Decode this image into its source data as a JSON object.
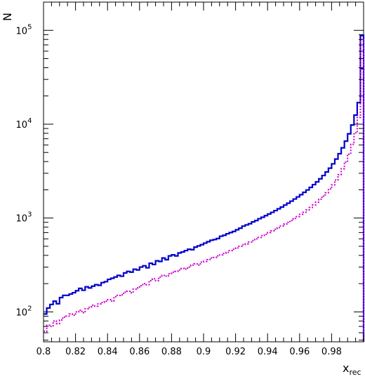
{
  "chart_data": {
    "type": "line",
    "ylabel": "N",
    "xlabel_main": "x",
    "xlabel_sub": "rec",
    "y_scale": "log",
    "xlim": [
      0.8,
      1.0
    ],
    "ylim": [
      48,
      200000
    ],
    "grid": false,
    "legend": "none",
    "x_ticks": [
      0.8,
      0.82,
      0.84,
      0.86,
      0.88,
      0.9,
      0.92,
      0.94,
      0.96,
      0.98
    ],
    "x_tick_labels": [
      "0.8",
      "0.82",
      "0.84",
      "0.86",
      "0.88",
      "0.9",
      "0.92",
      "0.94",
      "0.96",
      "0.98"
    ],
    "y_ticks": [
      {
        "value": 100,
        "base": "10",
        "exp": "2"
      },
      {
        "value": 1000,
        "base": "10",
        "exp": "3"
      },
      {
        "value": 10000,
        "base": "10",
        "exp": "4"
      },
      {
        "value": 100000,
        "base": "10",
        "exp": "5"
      }
    ],
    "bins": 100,
    "series": [
      {
        "style": "solid",
        "color": "#0000cc",
        "values": [
          95,
          110,
          120,
          130,
          122,
          142,
          150,
          150,
          155,
          160,
          168,
          178,
          170,
          185,
          180,
          188,
          195,
          192,
          205,
          210,
          222,
          228,
          235,
          245,
          240,
          260,
          270,
          265,
          285,
          280,
          300,
          310,
          295,
          330,
          320,
          350,
          345,
          375,
          360,
          395,
          405,
          395,
          425,
          435,
          450,
          465,
          460,
          490,
          505,
          520,
          540,
          560,
          580,
          590,
          605,
          640,
          655,
          680,
          700,
          720,
          750,
          780,
          820,
          845,
          870,
          910,
          940,
          985,
          1020,
          1060,
          1105,
          1150,
          1200,
          1255,
          1310,
          1375,
          1440,
          1515,
          1595,
          1680,
          1775,
          1880,
          1990,
          2120,
          2270,
          2430,
          2620,
          2840,
          3100,
          3400,
          3780,
          4250,
          4850,
          5600,
          6600,
          7900,
          9800,
          12500,
          17000,
          39000
        ]
      },
      {
        "style": "dotted",
        "color": "#cc00cc",
        "values": [
          62,
          72,
          70,
          80,
          75,
          82,
          88,
          90,
          95,
          92,
          100,
          104,
          98,
          108,
          112,
          118,
          115,
          122,
          126,
          130,
          135,
          130,
          145,
          150,
          152,
          162,
          166,
          160,
          175,
          180,
          190,
          200,
          195,
          215,
          225,
          215,
          235,
          245,
          240,
          255,
          265,
          270,
          280,
          290,
          285,
          300,
          315,
          325,
          315,
          340,
          345,
          360,
          375,
          380,
          395,
          405,
          420,
          430,
          450,
          465,
          480,
          500,
          520,
          530,
          555,
          575,
          600,
          620,
          650,
          670,
          700,
          730,
          760,
          790,
          825,
          860,
          900,
          940,
          990,
          1035,
          1095,
          1150,
          1220,
          1295,
          1380,
          1475,
          1585,
          1710,
          1860,
          2040,
          2260,
          2540,
          2900,
          3350,
          3950,
          4800,
          6100,
          8100,
          11800,
          35000
        ]
      }
    ],
    "last_bin_peak": [
      {
        "series": 0,
        "value": 88000
      },
      {
        "series": 1,
        "value": 80000
      }
    ]
  }
}
